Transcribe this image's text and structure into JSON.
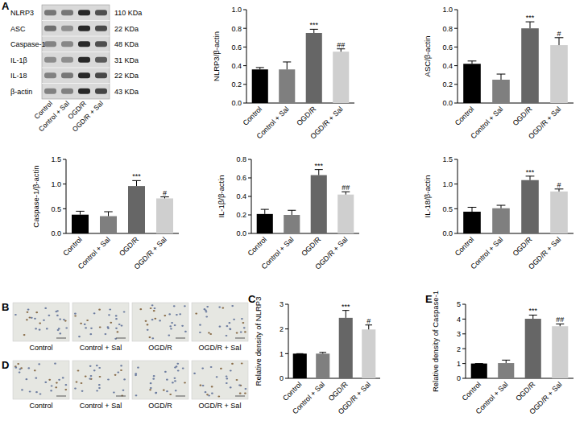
{
  "blot": {
    "panel_label": "A",
    "rows": [
      {
        "label": "NLRP3",
        "size": "110 KDa"
      },
      {
        "label": "ASC",
        "size": "22 KDa"
      },
      {
        "label": "Caspase-1",
        "size": "48 KDa"
      },
      {
        "label": "IL-1β",
        "size": "31 KDa"
      },
      {
        "label": "IL-18",
        "size": "22 KDa"
      },
      {
        "label": "β-actin",
        "size": "43 KDa"
      }
    ],
    "lanes": [
      "Control",
      "Control + Sal",
      "OGD/R",
      "OGD/R + Sal"
    ]
  },
  "micrographs": [
    {
      "panel_label": "B",
      "labels": [
        "Control",
        "Control + Sal",
        "OGD/R",
        "OGD/R + Sal"
      ]
    },
    {
      "panel_label": "D",
      "labels": [
        "Control",
        "Control + Sal",
        "OGD/R",
        "OGD/R + Sal"
      ]
    }
  ],
  "chart_data": [
    {
      "type": "bar",
      "y_label": "NLRP3/β-actin",
      "categories": [
        "Control",
        "Control + Sal",
        "OGD/R",
        "OGD/R + Sal"
      ],
      "values": [
        0.36,
        0.36,
        0.75,
        0.55
      ],
      "errors": [
        0.02,
        0.08,
        0.04,
        0.03
      ],
      "annotations": [
        null,
        null,
        "***",
        "##"
      ],
      "colors": [
        "#000000",
        "#7f7f7f",
        "#666666",
        "#cfcfcf"
      ],
      "ylim": [
        0,
        1.0
      ],
      "yticks": [
        {
          "value": 0,
          "label": "0.0"
        },
        0.2,
        0.4,
        0.6,
        0.8,
        {
          "value": 1,
          "label": "1.0"
        }
      ]
    },
    {
      "type": "bar",
      "y_label": "ASC/β-actin",
      "categories": [
        "Control",
        "Control + Sal",
        "OGD/R",
        "OGD/R + Sal"
      ],
      "values": [
        0.42,
        0.25,
        0.8,
        0.62
      ],
      "errors": [
        0.03,
        0.06,
        0.07,
        0.08
      ],
      "annotations": [
        null,
        null,
        "***",
        "#"
      ],
      "colors": [
        "#000000",
        "#7f7f7f",
        "#666666",
        "#cfcfcf"
      ],
      "ylim": [
        0,
        1.0
      ],
      "yticks": [
        {
          "value": 0,
          "label": "0.0"
        },
        0.2,
        0.4,
        0.6,
        0.8,
        {
          "value": 1,
          "label": "1.0"
        }
      ]
    },
    {
      "type": "bar",
      "y_label": "Caspase-1/β-actin",
      "categories": [
        "Control",
        "Control + Sal",
        "OGD/R",
        "OGD/R + Sal"
      ],
      "values": [
        0.38,
        0.35,
        0.96,
        0.71
      ],
      "errors": [
        0.07,
        0.09,
        0.11,
        0.03
      ],
      "annotations": [
        null,
        null,
        "***",
        "#"
      ],
      "colors": [
        "#000000",
        "#7f7f7f",
        "#666666",
        "#cfcfcf"
      ],
      "ylim": [
        0,
        1.5
      ],
      "yticks": [
        {
          "value": 0,
          "label": "0.0"
        },
        0.5,
        {
          "value": 1,
          "label": "1.0"
        },
        1.5
      ]
    },
    {
      "type": "bar",
      "y_label": "IL-1β/β-actin",
      "categories": [
        "Control",
        "Control + Sal",
        "OGD/R",
        "OGD/R + Sal"
      ],
      "values": [
        0.21,
        0.2,
        0.63,
        0.42
      ],
      "errors": [
        0.05,
        0.05,
        0.06,
        0.03
      ],
      "annotations": [
        null,
        null,
        "***",
        "##"
      ],
      "colors": [
        "#000000",
        "#7f7f7f",
        "#666666",
        "#cfcfcf"
      ],
      "ylim": [
        0,
        0.8
      ],
      "yticks": [
        {
          "value": 0,
          "label": "0.0"
        },
        0.2,
        0.4,
        0.6,
        0.8
      ]
    },
    {
      "type": "bar",
      "y_label": "IL-18/β-actin",
      "categories": [
        "Control",
        "Control + Sal",
        "OGD/R",
        "OGD/R + Sal"
      ],
      "values": [
        0.44,
        0.51,
        1.08,
        0.85
      ],
      "errors": [
        0.09,
        0.06,
        0.08,
        0.05
      ],
      "annotations": [
        null,
        null,
        "***",
        "#"
      ],
      "colors": [
        "#000000",
        "#7f7f7f",
        "#666666",
        "#cfcfcf"
      ],
      "ylim": [
        0,
        1.5
      ],
      "yticks": [
        {
          "value": 0,
          "label": "0.0"
        },
        0.5,
        {
          "value": 1,
          "label": "1.0"
        },
        1.5
      ]
    },
    {
      "type": "bar",
      "panel_label": "C",
      "y_label": "Relative density of NLRP3",
      "categories": [
        "Control",
        "Control + Sal",
        "OGD/R",
        "OGD/R + Sal"
      ],
      "values": [
        1,
        1.0,
        2.45,
        1.98
      ],
      "errors": [
        0,
        0.05,
        0.3,
        0.18
      ],
      "annotations": [
        null,
        null,
        "***",
        "#"
      ],
      "colors": [
        "#000000",
        "#7f7f7f",
        "#666666",
        "#cfcfcf"
      ],
      "ylim": [
        0,
        3
      ],
      "yticks": [
        0,
        1,
        2,
        3
      ]
    },
    {
      "type": "bar",
      "panel_label": "E",
      "y_label": "Relative density of Caspase-1",
      "categories": [
        "Control",
        "Control + Sal",
        "OGD/R",
        "OGD/R + Sal"
      ],
      "values": [
        1,
        1.03,
        4.02,
        3.52
      ],
      "errors": [
        0,
        0.2,
        0.25,
        0.15
      ],
      "annotations": [
        null,
        null,
        "***",
        "##"
      ],
      "colors": [
        "#000000",
        "#7f7f7f",
        "#666666",
        "#cfcfcf"
      ],
      "ylim": [
        0,
        5
      ],
      "yticks": [
        0,
        1,
        2,
        3,
        4,
        5
      ]
    }
  ]
}
